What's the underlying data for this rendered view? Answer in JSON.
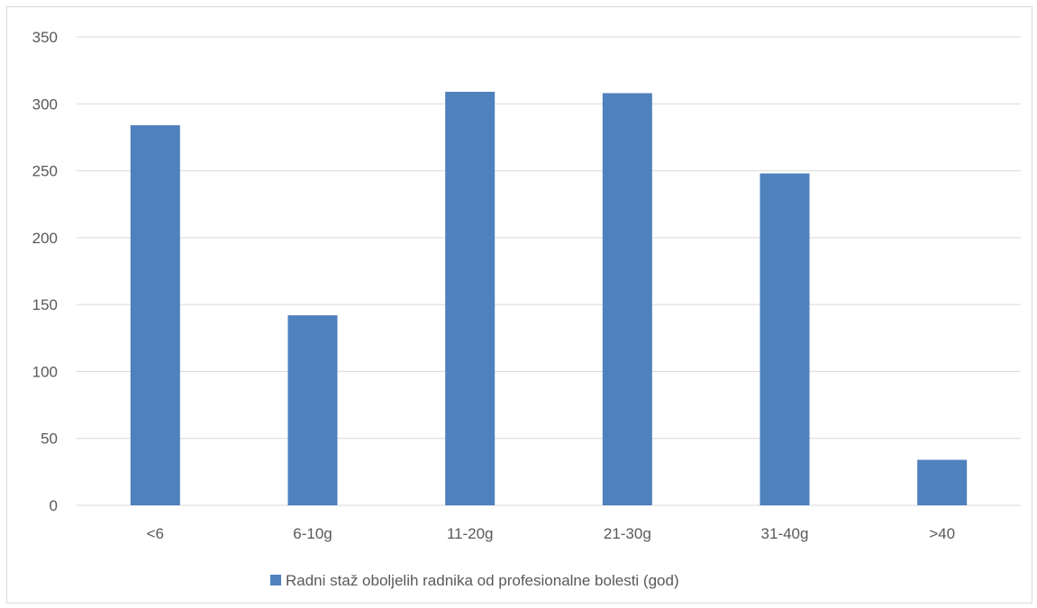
{
  "chart_data": {
    "type": "bar",
    "categories": [
      "<6",
      "6-10g",
      "11-20g",
      "21-30g",
      "31-40g",
      ">40"
    ],
    "series": [
      {
        "name": "Radni staž oboljelih radnika od profesionalne bolesti (god)",
        "values": [
          284,
          142,
          309,
          308,
          248,
          34
        ],
        "color": "#4f81bd"
      }
    ],
    "ylim": [
      0,
      350
    ],
    "yticks": [
      0,
      50,
      100,
      150,
      200,
      250,
      300,
      350
    ],
    "grid": true,
    "legend_position": "bottom",
    "title": "",
    "xlabel": "",
    "ylabel": ""
  }
}
